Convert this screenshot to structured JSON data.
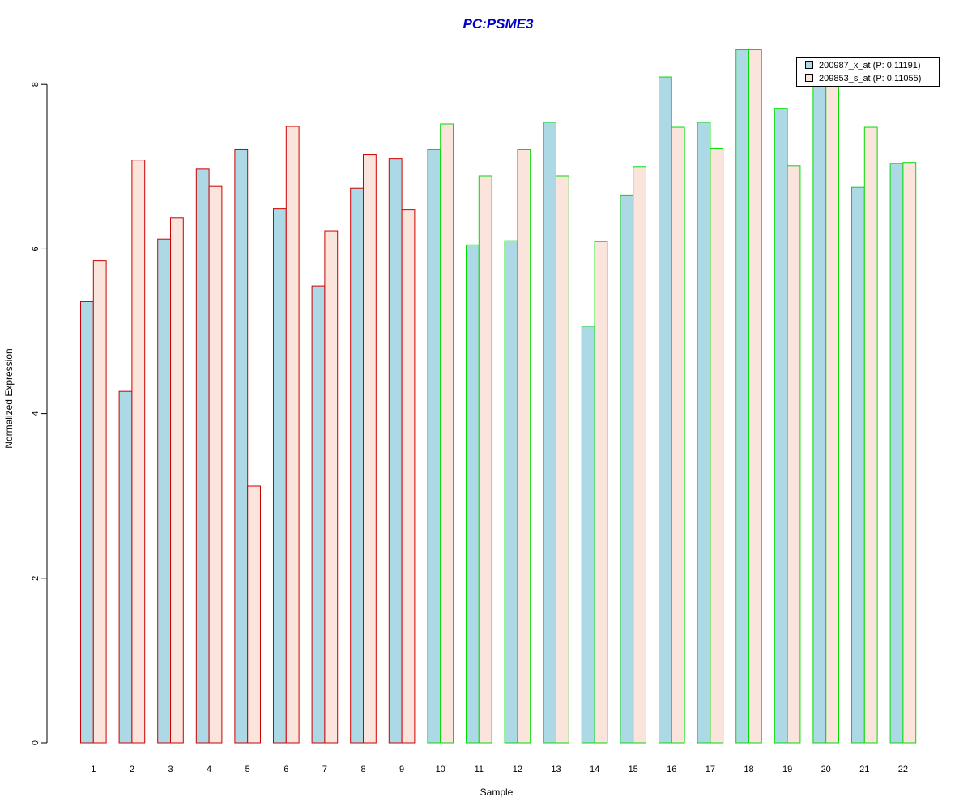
{
  "chart_data": {
    "type": "bar",
    "title": "PC:PSME3",
    "xlabel": "Sample",
    "ylabel": "Normalized Expression",
    "ylim": [
      0,
      8.4
    ],
    "yticks": [
      "0",
      "2",
      "4",
      "6",
      "8"
    ],
    "categories": [
      "1",
      "2",
      "3",
      "4",
      "5",
      "6",
      "7",
      "8",
      "9",
      "10",
      "11",
      "12",
      "13",
      "14",
      "15",
      "16",
      "17",
      "18",
      "19",
      "20",
      "21",
      "22"
    ],
    "series": [
      {
        "name": "200987_x_at (P: 0.11191)",
        "fill": "#add8e6",
        "values": [
          5.36,
          4.27,
          6.12,
          6.97,
          7.21,
          6.49,
          5.55,
          6.74,
          7.1,
          7.21,
          6.05,
          6.1,
          7.54,
          5.06,
          6.65,
          8.09,
          7.54,
          8.42,
          7.71,
          8.02,
          6.75,
          7.04
        ]
      },
      {
        "name": "209853_s_at (P: 0.11055)",
        "fill": "#fae4dc",
        "values": [
          5.86,
          7.08,
          6.38,
          6.76,
          3.12,
          7.49,
          6.22,
          7.15,
          6.48,
          7.52,
          6.89,
          7.21,
          6.89,
          6.09,
          7.0,
          7.48,
          7.22,
          8.42,
          7.01,
          8.02,
          7.48,
          7.05
        ]
      }
    ],
    "group_border_colors": [
      "#cc0000",
      "#cc0000",
      "#cc0000",
      "#cc0000",
      "#cc0000",
      "#cc0000",
      "#cc0000",
      "#cc0000",
      "#cc0000",
      "#00dd00",
      "#00dd00",
      "#00dd00",
      "#00dd00",
      "#00dd00",
      "#00dd00",
      "#00dd00",
      "#00dd00",
      "#00dd00",
      "#00dd00",
      "#00dd00",
      "#00dd00",
      "#00dd00"
    ],
    "legend_position": "top-right",
    "grid": false
  }
}
